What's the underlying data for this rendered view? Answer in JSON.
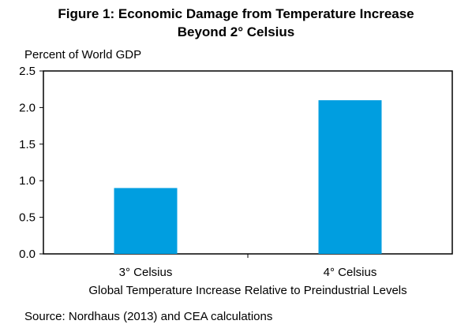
{
  "chart_data": {
    "type": "bar",
    "title_line1": "Figure 1: Economic Damage from Temperature Increase",
    "title_line2": "Beyond 2° Celsius",
    "ylabel": "Percent of World GDP",
    "xlabel": "Global Temperature Increase Relative to Preindustrial Levels",
    "categories": [
      "3° Celsius",
      "4° Celsius"
    ],
    "values": [
      0.9,
      2.1
    ],
    "ylim": [
      0,
      2.5
    ],
    "yticks": [
      "0.0",
      "0.5",
      "1.0",
      "1.5",
      "2.0",
      "2.5"
    ],
    "bar_color": "#009ee0",
    "grid": false,
    "source": "Source: Nordhaus (2013) and CEA calculations"
  }
}
